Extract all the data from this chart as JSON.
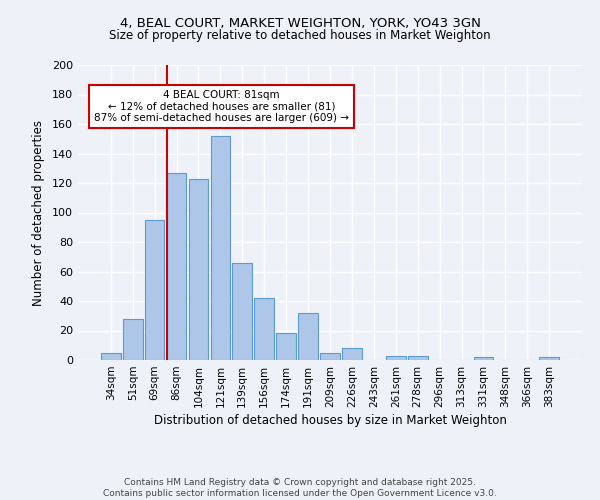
{
  "title1": "4, BEAL COURT, MARKET WEIGHTON, YORK, YO43 3GN",
  "title2": "Size of property relative to detached houses in Market Weighton",
  "xlabel": "Distribution of detached houses by size in Market Weighton",
  "ylabel": "Number of detached properties",
  "categories": [
    "34sqm",
    "51sqm",
    "69sqm",
    "86sqm",
    "104sqm",
    "121sqm",
    "139sqm",
    "156sqm",
    "174sqm",
    "191sqm",
    "209sqm",
    "226sqm",
    "243sqm",
    "261sqm",
    "278sqm",
    "296sqm",
    "313sqm",
    "331sqm",
    "348sqm",
    "366sqm",
    "383sqm"
  ],
  "values": [
    5,
    28,
    95,
    127,
    123,
    152,
    66,
    42,
    18,
    32,
    5,
    8,
    0,
    3,
    3,
    0,
    0,
    2,
    0,
    0,
    2
  ],
  "bar_color": "#aec6e8",
  "bar_edge_color": "#5b9bd5",
  "red_line_index": 3,
  "annotation_text": "4 BEAL COURT: 81sqm\n← 12% of detached houses are smaller (81)\n87% of semi-detached houses are larger (609) →",
  "annotation_box_color": "#ffffff",
  "annotation_box_edge": "#cc0000",
  "ylim": [
    0,
    200
  ],
  "yticks": [
    0,
    20,
    40,
    60,
    80,
    100,
    120,
    140,
    160,
    180,
    200
  ],
  "footer1": "Contains HM Land Registry data © Crown copyright and database right 2025.",
  "footer2": "Contains public sector information licensed under the Open Government Licence v3.0.",
  "background_color": "#eef2f8",
  "plot_bg_color": "#eef2f8",
  "grid_color": "#ffffff",
  "red_line_color": "#cc0000"
}
